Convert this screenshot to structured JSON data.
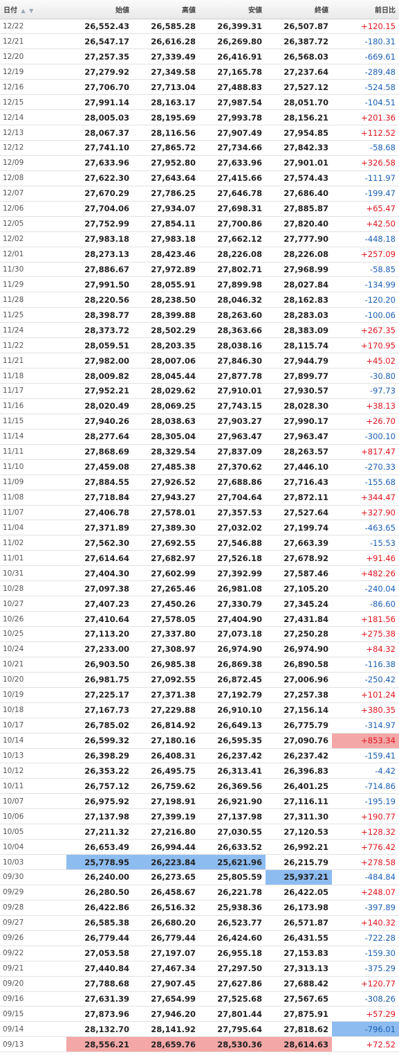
{
  "headers": {
    "date": "日付",
    "open": "始値",
    "high": "高値",
    "low": "安値",
    "close": "終値",
    "change": "前日比"
  },
  "icons": {
    "sort_asc": "▲",
    "sort_desc": "▼"
  },
  "colors": {
    "up": "#e0141e",
    "down": "#1a5fb4",
    "highlight_max": "#f4a7a7",
    "highlight_min": "#8dbcf0"
  },
  "rows": [
    {
      "date": "12/22",
      "open": "26,552.43",
      "high": "26,585.28",
      "low": "26,399.31",
      "close": "26,507.87",
      "change": "+120.15"
    },
    {
      "date": "12/21",
      "open": "26,547.17",
      "high": "26,616.28",
      "low": "26,269.80",
      "close": "26,387.72",
      "change": "-180.31"
    },
    {
      "date": "12/20",
      "open": "27,257.35",
      "high": "27,339.49",
      "low": "26,416.91",
      "close": "26,568.03",
      "change": "-669.61"
    },
    {
      "date": "12/19",
      "open": "27,279.92",
      "high": "27,349.58",
      "low": "27,165.78",
      "close": "27,237.64",
      "change": "-289.48"
    },
    {
      "date": "12/16",
      "open": "27,706.70",
      "high": "27,713.04",
      "low": "27,488.83",
      "close": "27,527.12",
      "change": "-524.58"
    },
    {
      "date": "12/15",
      "open": "27,991.14",
      "high": "28,163.17",
      "low": "27,987.54",
      "close": "28,051.70",
      "change": "-104.51"
    },
    {
      "date": "12/14",
      "open": "28,005.03",
      "high": "28,195.69",
      "low": "27,993.78",
      "close": "28,156.21",
      "change": "+201.36"
    },
    {
      "date": "12/13",
      "open": "28,067.37",
      "high": "28,116.56",
      "low": "27,907.49",
      "close": "27,954.85",
      "change": "+112.52"
    },
    {
      "date": "12/12",
      "open": "27,741.10",
      "high": "27,865.72",
      "low": "27,734.66",
      "close": "27,842.33",
      "change": "-58.68"
    },
    {
      "date": "12/09",
      "open": "27,633.96",
      "high": "27,952.80",
      "low": "27,633.96",
      "close": "27,901.01",
      "change": "+326.58"
    },
    {
      "date": "12/08",
      "open": "27,622.30",
      "high": "27,643.64",
      "low": "27,415.66",
      "close": "27,574.43",
      "change": "-111.97"
    },
    {
      "date": "12/07",
      "open": "27,670.29",
      "high": "27,786.25",
      "low": "27,646.78",
      "close": "27,686.40",
      "change": "-199.47"
    },
    {
      "date": "12/06",
      "open": "27,704.06",
      "high": "27,934.07",
      "low": "27,698.31",
      "close": "27,885.87",
      "change": "+65.47"
    },
    {
      "date": "12/05",
      "open": "27,752.99",
      "high": "27,854.11",
      "low": "27,700.86",
      "close": "27,820.40",
      "change": "+42.50"
    },
    {
      "date": "12/02",
      "open": "27,983.18",
      "high": "27,983.18",
      "low": "27,662.12",
      "close": "27,777.90",
      "change": "-448.18"
    },
    {
      "date": "12/01",
      "open": "28,273.13",
      "high": "28,423.46",
      "low": "28,226.08",
      "close": "28,226.08",
      "change": "+257.09"
    },
    {
      "date": "11/30",
      "open": "27,886.67",
      "high": "27,972.89",
      "low": "27,802.71",
      "close": "27,968.99",
      "change": "-58.85"
    },
    {
      "date": "11/29",
      "open": "27,991.50",
      "high": "28,055.91",
      "low": "27,899.98",
      "close": "28,027.84",
      "change": "-134.99"
    },
    {
      "date": "11/28",
      "open": "28,220.56",
      "high": "28,238.50",
      "low": "28,046.32",
      "close": "28,162.83",
      "change": "-120.20"
    },
    {
      "date": "11/25",
      "open": "28,398.77",
      "high": "28,399.88",
      "low": "28,263.60",
      "close": "28,283.03",
      "change": "-100.06"
    },
    {
      "date": "11/24",
      "open": "28,373.72",
      "high": "28,502.29",
      "low": "28,363.66",
      "close": "28,383.09",
      "change": "+267.35"
    },
    {
      "date": "11/22",
      "open": "28,059.51",
      "high": "28,203.35",
      "low": "28,038.16",
      "close": "28,115.74",
      "change": "+170.95"
    },
    {
      "date": "11/21",
      "open": "27,982.00",
      "high": "28,007.06",
      "low": "27,846.30",
      "close": "27,944.79",
      "change": "+45.02"
    },
    {
      "date": "11/18",
      "open": "28,009.82",
      "high": "28,045.44",
      "low": "27,877.78",
      "close": "27,899.77",
      "change": "-30.80"
    },
    {
      "date": "11/17",
      "open": "27,952.21",
      "high": "28,029.62",
      "low": "27,910.01",
      "close": "27,930.57",
      "change": "-97.73"
    },
    {
      "date": "11/16",
      "open": "28,020.49",
      "high": "28,069.25",
      "low": "27,743.15",
      "close": "28,028.30",
      "change": "+38.13"
    },
    {
      "date": "11/15",
      "open": "27,940.26",
      "high": "28,038.63",
      "low": "27,903.27",
      "close": "27,990.17",
      "change": "+26.70"
    },
    {
      "date": "11/14",
      "open": "28,277.64",
      "high": "28,305.04",
      "low": "27,963.47",
      "close": "27,963.47",
      "change": "-300.10"
    },
    {
      "date": "11/11",
      "open": "27,868.69",
      "high": "28,329.54",
      "low": "27,837.09",
      "close": "28,263.57",
      "change": "+817.47"
    },
    {
      "date": "11/10",
      "open": "27,459.08",
      "high": "27,485.38",
      "low": "27,370.62",
      "close": "27,446.10",
      "change": "-270.33"
    },
    {
      "date": "11/09",
      "open": "27,884.55",
      "high": "27,926.52",
      "low": "27,688.86",
      "close": "27,716.43",
      "change": "-155.68"
    },
    {
      "date": "11/08",
      "open": "27,718.84",
      "high": "27,943.27",
      "low": "27,704.64",
      "close": "27,872.11",
      "change": "+344.47"
    },
    {
      "date": "11/07",
      "open": "27,406.78",
      "high": "27,578.01",
      "low": "27,357.53",
      "close": "27,527.64",
      "change": "+327.90"
    },
    {
      "date": "11/04",
      "open": "27,371.89",
      "high": "27,389.30",
      "low": "27,032.02",
      "close": "27,199.74",
      "change": "-463.65"
    },
    {
      "date": "11/02",
      "open": "27,562.30",
      "high": "27,692.55",
      "low": "27,546.88",
      "close": "27,663.39",
      "change": "-15.53"
    },
    {
      "date": "11/01",
      "open": "27,614.64",
      "high": "27,682.97",
      "low": "27,526.18",
      "close": "27,678.92",
      "change": "+91.46"
    },
    {
      "date": "10/31",
      "open": "27,404.30",
      "high": "27,602.99",
      "low": "27,392.99",
      "close": "27,587.46",
      "change": "+482.26"
    },
    {
      "date": "10/28",
      "open": "27,097.38",
      "high": "27,265.46",
      "low": "26,981.08",
      "close": "27,105.20",
      "change": "-240.04"
    },
    {
      "date": "10/27",
      "open": "27,407.23",
      "high": "27,450.26",
      "low": "27,330.79",
      "close": "27,345.24",
      "change": "-86.60"
    },
    {
      "date": "10/26",
      "open": "27,410.64",
      "high": "27,578.05",
      "low": "27,404.90",
      "close": "27,431.84",
      "change": "+181.56"
    },
    {
      "date": "10/25",
      "open": "27,113.20",
      "high": "27,337.80",
      "low": "27,073.18",
      "close": "27,250.28",
      "change": "+275.38"
    },
    {
      "date": "10/24",
      "open": "27,233.00",
      "high": "27,308.97",
      "low": "26,974.90",
      "close": "26,974.90",
      "change": "+84.32"
    },
    {
      "date": "10/21",
      "open": "26,903.50",
      "high": "26,985.38",
      "low": "26,869.38",
      "close": "26,890.58",
      "change": "-116.38"
    },
    {
      "date": "10/20",
      "open": "26,981.75",
      "high": "27,092.55",
      "low": "26,872.45",
      "close": "27,006.96",
      "change": "-250.42"
    },
    {
      "date": "10/19",
      "open": "27,225.17",
      "high": "27,371.38",
      "low": "27,192.79",
      "close": "27,257.38",
      "change": "+101.24"
    },
    {
      "date": "10/18",
      "open": "27,167.73",
      "high": "27,229.88",
      "low": "26,910.10",
      "close": "27,156.14",
      "change": "+380.35"
    },
    {
      "date": "10/17",
      "open": "26,785.02",
      "high": "26,814.92",
      "low": "26,649.13",
      "close": "26,775.79",
      "change": "-314.97"
    },
    {
      "date": "10/14",
      "open": "26,599.32",
      "high": "27,180.16",
      "low": "26,595.35",
      "close": "27,090.76",
      "change": "+853.34",
      "hl": {
        "change": "red"
      }
    },
    {
      "date": "10/13",
      "open": "26,398.29",
      "high": "26,408.31",
      "low": "26,237.42",
      "close": "26,237.42",
      "change": "-159.41"
    },
    {
      "date": "10/12",
      "open": "26,353.22",
      "high": "26,495.75",
      "low": "26,313.41",
      "close": "26,396.83",
      "change": "-4.42"
    },
    {
      "date": "10/11",
      "open": "26,757.12",
      "high": "26,759.62",
      "low": "26,369.56",
      "close": "26,401.25",
      "change": "-714.86"
    },
    {
      "date": "10/07",
      "open": "26,975.92",
      "high": "27,198.91",
      "low": "26,921.90",
      "close": "27,116.11",
      "change": "-195.19"
    },
    {
      "date": "10/06",
      "open": "27,137.98",
      "high": "27,399.19",
      "low": "27,137.98",
      "close": "27,311.30",
      "change": "+190.77"
    },
    {
      "date": "10/05",
      "open": "27,211.32",
      "high": "27,216.80",
      "low": "27,030.55",
      "close": "27,120.53",
      "change": "+128.32"
    },
    {
      "date": "10/04",
      "open": "26,653.49",
      "high": "26,994.44",
      "low": "26,633.52",
      "close": "26,992.21",
      "change": "+776.42"
    },
    {
      "date": "10/03",
      "open": "25,778.95",
      "high": "26,223.84",
      "low": "25,621.96",
      "close": "26,215.79",
      "change": "+278.58",
      "hl": {
        "open": "blue",
        "high": "blue",
        "low": "blue"
      }
    },
    {
      "date": "09/30",
      "open": "26,240.00",
      "high": "26,273.65",
      "low": "25,805.59",
      "close": "25,937.21",
      "change": "-484.84",
      "hl": {
        "close": "blue"
      }
    },
    {
      "date": "09/29",
      "open": "26,280.50",
      "high": "26,458.67",
      "low": "26,221.78",
      "close": "26,422.05",
      "change": "+248.07"
    },
    {
      "date": "09/28",
      "open": "26,422.86",
      "high": "26,516.32",
      "low": "25,938.36",
      "close": "26,173.98",
      "change": "-397.89"
    },
    {
      "date": "09/27",
      "open": "26,585.38",
      "high": "26,680.20",
      "low": "26,523.77",
      "close": "26,571.87",
      "change": "+140.32"
    },
    {
      "date": "09/26",
      "open": "26,779.44",
      "high": "26,779.44",
      "low": "26,424.60",
      "close": "26,431.55",
      "change": "-722.28"
    },
    {
      "date": "09/22",
      "open": "27,053.58",
      "high": "27,197.07",
      "low": "26,955.18",
      "close": "27,153.83",
      "change": "-159.30"
    },
    {
      "date": "09/21",
      "open": "27,440.84",
      "high": "27,467.34",
      "low": "27,297.50",
      "close": "27,313.13",
      "change": "-375.29"
    },
    {
      "date": "09/20",
      "open": "27,788.68",
      "high": "27,907.45",
      "low": "27,627.86",
      "close": "27,688.42",
      "change": "+120.77"
    },
    {
      "date": "09/16",
      "open": "27,631.39",
      "high": "27,654.99",
      "low": "27,525.68",
      "close": "27,567.65",
      "change": "-308.26"
    },
    {
      "date": "09/15",
      "open": "27,873.96",
      "high": "27,946.20",
      "low": "27,801.44",
      "close": "27,875.91",
      "change": "+57.29"
    },
    {
      "date": "09/14",
      "open": "28,132.70",
      "high": "28,141.92",
      "low": "27,795.64",
      "close": "27,818.62",
      "change": "-796.01",
      "hl": {
        "change": "blue"
      }
    },
    {
      "date": "09/13",
      "open": "28,556.21",
      "high": "28,659.76",
      "low": "28,530.36",
      "close": "28,614.63",
      "change": "+72.52",
      "hl": {
        "open": "red",
        "high": "red",
        "low": "red",
        "close": "red"
      }
    }
  ]
}
